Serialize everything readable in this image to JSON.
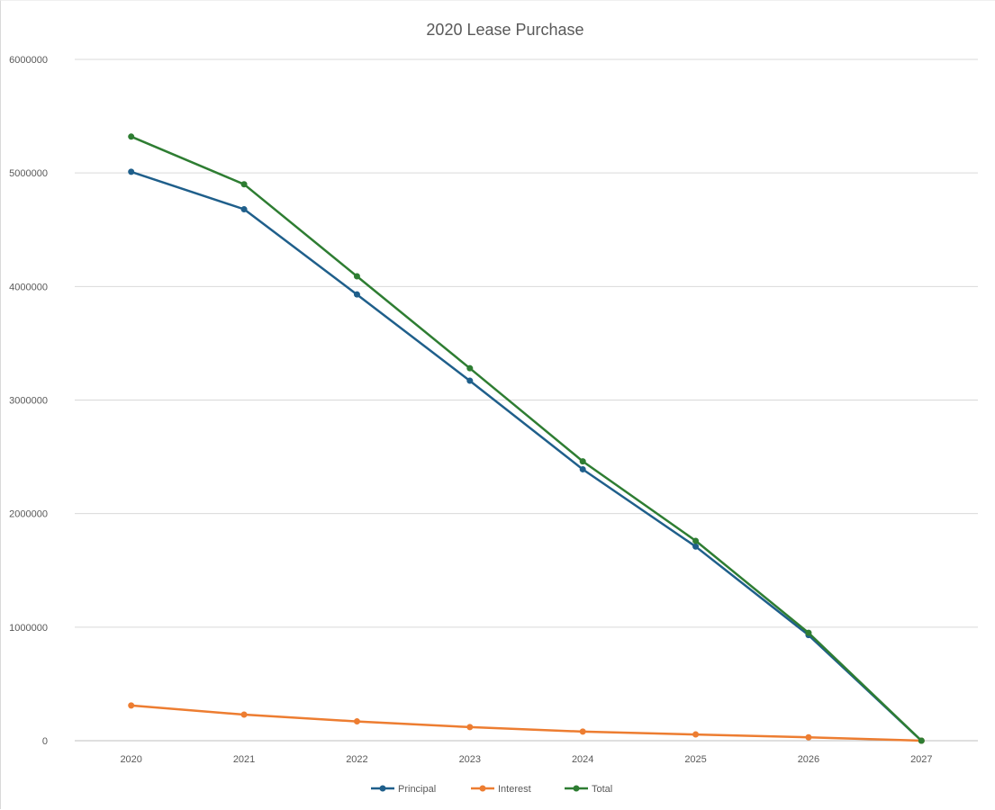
{
  "chart_data": {
    "type": "line",
    "title": "2020 Lease Purchase",
    "xlabel": "",
    "ylabel": "",
    "categories": [
      "2020",
      "2021",
      "2022",
      "2023",
      "2024",
      "2025",
      "2026",
      "2027"
    ],
    "yticks": [
      "0",
      "1000000",
      "2000000",
      "3000000",
      "4000000",
      "5000000",
      "6000000"
    ],
    "ylim": [
      0,
      6000000
    ],
    "grid": true,
    "legend_position": "bottom",
    "series": [
      {
        "name": "Principal",
        "color": "#1f5f8b",
        "values": [
          5010000,
          4680000,
          3930000,
          3170000,
          2390000,
          1710000,
          930000,
          0
        ]
      },
      {
        "name": "Interest",
        "color": "#ed7d31",
        "values": [
          310000,
          230000,
          170000,
          120000,
          80000,
          55000,
          30000,
          0
        ]
      },
      {
        "name": "Total",
        "color": "#2e7d32",
        "values": [
          5320000,
          4900000,
          4090000,
          3280000,
          2460000,
          1760000,
          950000,
          0
        ]
      }
    ]
  }
}
